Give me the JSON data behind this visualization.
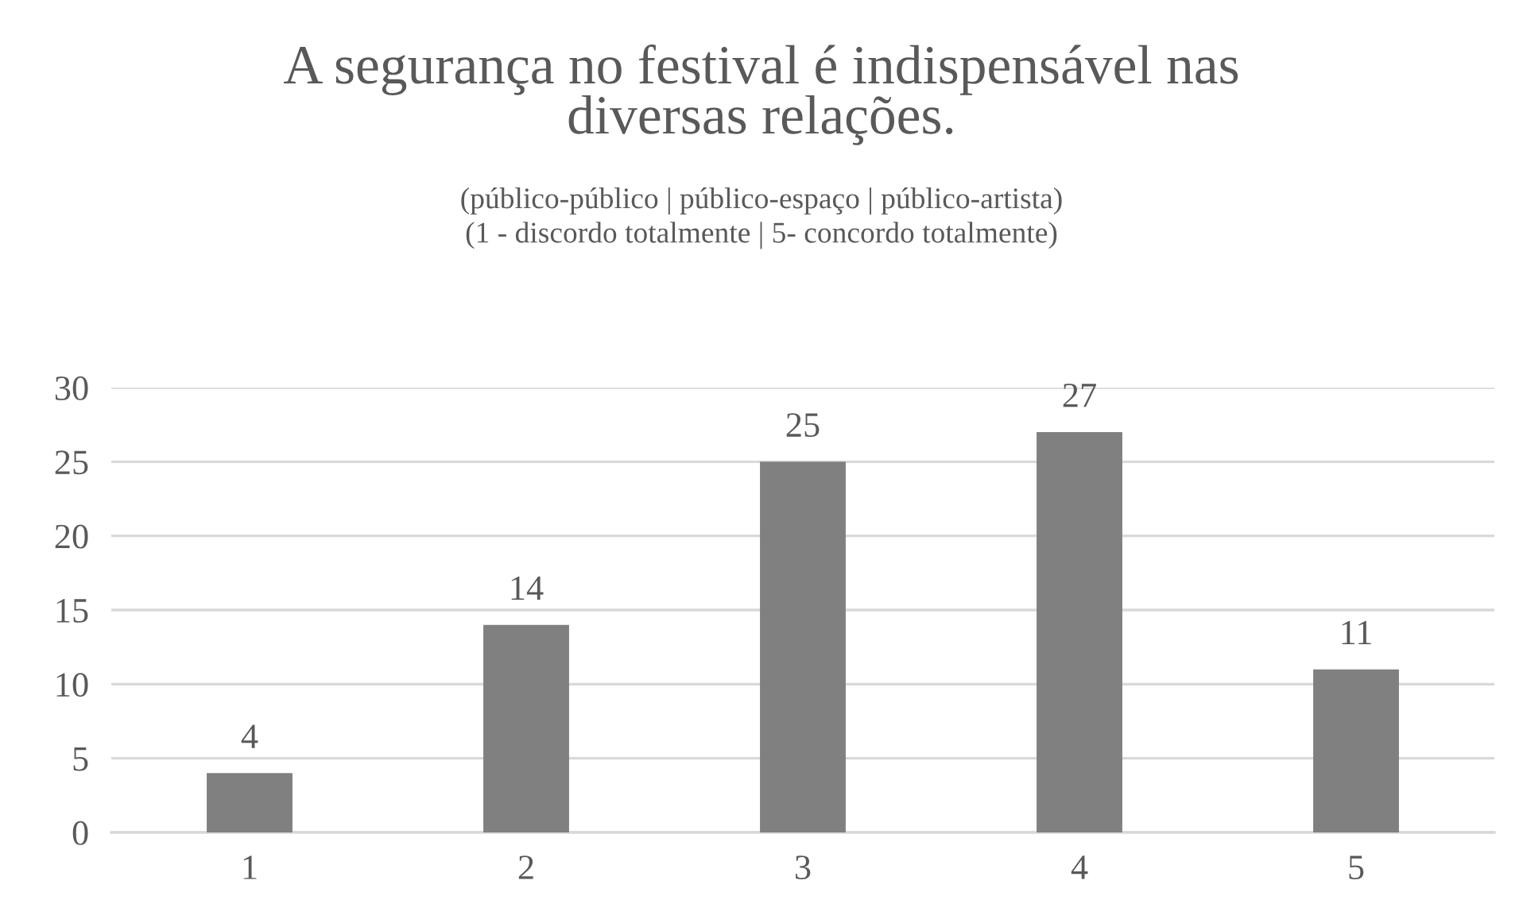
{
  "chart_data": {
    "type": "bar",
    "title": "A segurança no festival é indispensável nas\ndiversas relações.",
    "subtitle": "(público-público | público-espaço | público-artista)\n(1 - discordo totalmente | 5- concordo totalmente)",
    "categories": [
      "1",
      "2",
      "3",
      "4",
      "5"
    ],
    "values": [
      4,
      14,
      25,
      27,
      11
    ],
    "color": "#808080",
    "ylim": [
      0,
      30
    ],
    "yticks": [
      0,
      5,
      10,
      15,
      20,
      25,
      30
    ],
    "grid": "y",
    "data_labels": true,
    "legend": false
  }
}
